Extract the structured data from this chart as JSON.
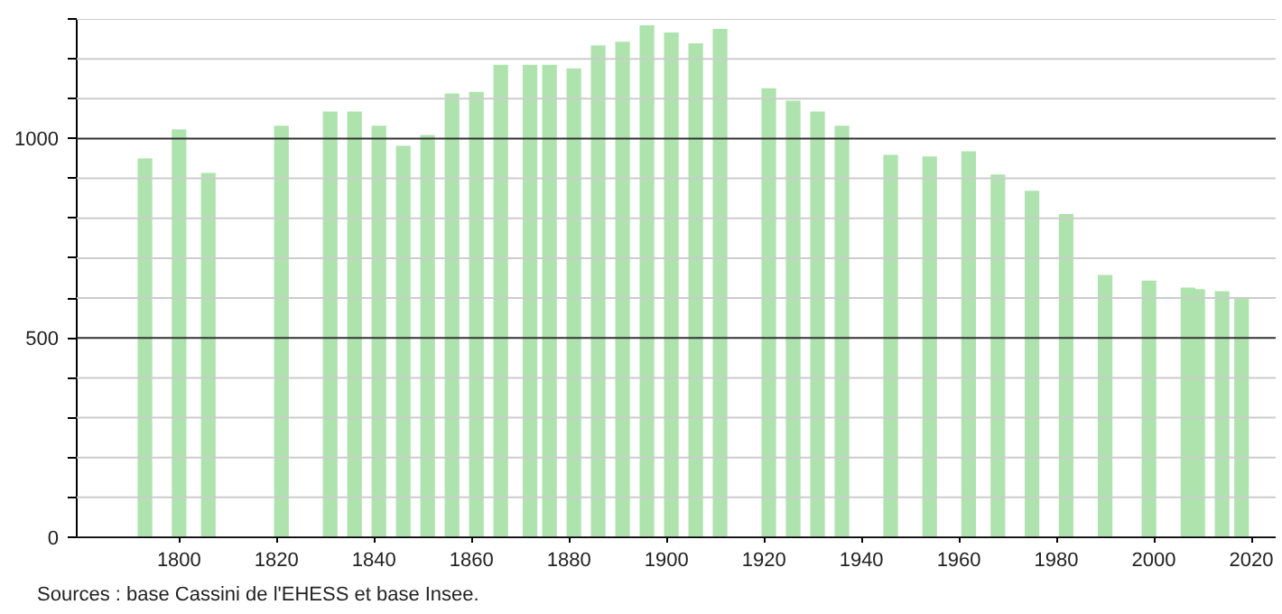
{
  "chart_data": {
    "type": "bar",
    "x": [
      1793,
      1800,
      1806,
      1821,
      1831,
      1836,
      1841,
      1846,
      1851,
      1856,
      1861,
      1866,
      1872,
      1876,
      1881,
      1886,
      1891,
      1896,
      1901,
      1906,
      1911,
      1921,
      1926,
      1931,
      1936,
      1946,
      1954,
      1962,
      1968,
      1975,
      1982,
      1990,
      1999,
      2007,
      2009,
      2014,
      2018
    ],
    "values": [
      950,
      1023,
      914,
      1032,
      1068,
      1068,
      1032,
      982,
      1009,
      1113,
      1117,
      1185,
      1185,
      1185,
      1176,
      1234,
      1243,
      1284,
      1266,
      1239,
      1275,
      1126,
      1095,
      1068,
      1032,
      959,
      955,
      968,
      910,
      869,
      811,
      658,
      644,
      626,
      622,
      617,
      599
    ],
    "color": "#aee3ae",
    "xlim": [
      1779,
      2025
    ],
    "ylim": [
      0,
      1300
    ],
    "xticks": [
      1800,
      1820,
      1840,
      1860,
      1880,
      1900,
      1920,
      1940,
      1960,
      1980,
      2000,
      2020
    ],
    "yticks": [
      0,
      {
        "value": 100,
        "label": null
      },
      {
        "value": 200,
        "label": null
      },
      {
        "value": 300,
        "label": null
      },
      {
        "value": 400,
        "label": null
      },
      500,
      {
        "value": 600,
        "label": null
      },
      {
        "value": 700,
        "label": null
      },
      {
        "value": 800,
        "label": null
      },
      {
        "value": 900,
        "label": null
      },
      1000,
      {
        "value": 1100,
        "label": null
      },
      {
        "value": 1200,
        "label": null
      },
      {
        "value": 1300,
        "label": null
      }
    ],
    "grid": "y",
    "annotations": [
      "Sources : base Cassini de l'EHESS et base Insee."
    ]
  }
}
